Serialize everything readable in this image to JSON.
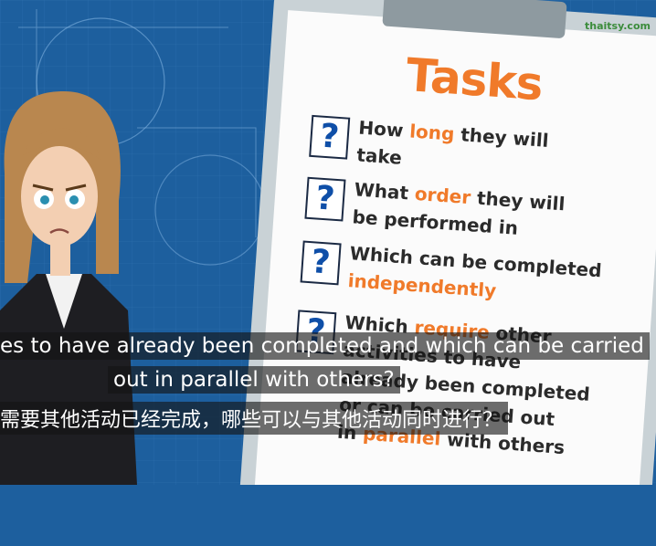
{
  "logo": "thaitsy.com",
  "clipboard": {
    "title": "Tasks",
    "highlight_color": "#f07a2a",
    "items": [
      {
        "icon": "?",
        "lines": [
          [
            {
              "text": "How "
            },
            {
              "text": "long",
              "highlight": true
            },
            {
              "text": " they will"
            }
          ],
          [
            {
              "text": "take"
            }
          ]
        ]
      },
      {
        "icon": "?",
        "lines": [
          [
            {
              "text": "What "
            },
            {
              "text": "order",
              "highlight": true
            },
            {
              "text": " they will"
            }
          ],
          [
            {
              "text": "be performed in"
            }
          ]
        ]
      },
      {
        "icon": "?",
        "lines": [
          [
            {
              "text": "Which can be completed"
            }
          ],
          [
            {
              "text": "independently",
              "highlight": true
            }
          ]
        ]
      },
      {
        "icon": "?",
        "lines": [
          [
            {
              "text": "Which "
            },
            {
              "text": "require",
              "highlight": true
            },
            {
              "text": " other"
            }
          ],
          [
            {
              "text": "activities to have"
            }
          ],
          [
            {
              "text": "already been completed"
            }
          ],
          [
            {
              "text": "or can be carried out"
            }
          ],
          [
            {
              "text": "in "
            },
            {
              "text": "parallel",
              "highlight": true
            },
            {
              "text": " with others"
            }
          ]
        ]
      }
    ]
  },
  "subtitles": {
    "english": [
      "es to have already been completed and which can be carried",
      "out in parallel with others?"
    ],
    "chinese": "需要其他活动已经完成，哪些可以与其他活动同时进行？"
  }
}
